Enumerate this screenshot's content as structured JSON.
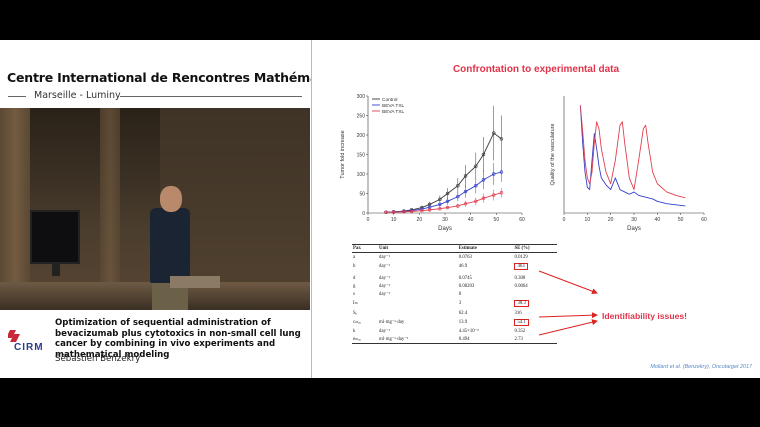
{
  "header": {
    "institute": "Centre International de Rencontres Mathématiques",
    "location": "Marseille - Luminy"
  },
  "caption": {
    "logo_text": "CIRM",
    "talk_title": "Optimization of sequential administration of bevacizumab plus cytotoxics in non-small cell lung cancer by combining in vivo experiments and mathematical modeling",
    "speaker": "Sébastien Benzekry"
  },
  "slide": {
    "title": "Confrontation to experimental data",
    "identifiability_label": "Identifiability issues!",
    "reference": "Mollard et al. (Benzekry), Oncotarget 2017"
  },
  "colors": {
    "accent_red": "#e0344a",
    "control": "#3a3a3a",
    "beva_txl": "#3340c8",
    "beva_txl2": "#e04050"
  },
  "chart_data": [
    {
      "type": "line",
      "xlabel": "Days",
      "ylabel": "Tumor fold increase",
      "xlim": [
        0,
        60
      ],
      "ylim": [
        0,
        300
      ],
      "xticks": [
        0,
        10,
        20,
        30,
        40,
        50,
        60
      ],
      "yticks": [
        0,
        50,
        100,
        150,
        200,
        250,
        300
      ],
      "legend_position": "top-left",
      "series": [
        {
          "name": "Control",
          "color": "#3a3a3a",
          "x": [
            7,
            10,
            14,
            17,
            21,
            24,
            28,
            31,
            35,
            38,
            42,
            45,
            49,
            52
          ],
          "y": [
            2,
            3,
            5,
            8,
            14,
            22,
            35,
            50,
            70,
            95,
            120,
            150,
            205,
            190
          ],
          "err": [
            1,
            1,
            2,
            3,
            5,
            7,
            10,
            14,
            20,
            28,
            35,
            45,
            70,
            60
          ]
        },
        {
          "name": "BEVA TXL",
          "color": "#3340c8",
          "x": [
            7,
            10,
            14,
            17,
            21,
            24,
            28,
            31,
            35,
            38,
            42,
            45,
            49,
            52
          ],
          "y": [
            2,
            3,
            4,
            6,
            10,
            15,
            22,
            30,
            42,
            55,
            70,
            85,
            100,
            105
          ],
          "err": [
            1,
            1,
            2,
            2,
            4,
            5,
            7,
            9,
            12,
            16,
            20,
            24,
            28,
            25
          ]
        },
        {
          "name": "BEVA TXL",
          "color": "#e04050",
          "x": [
            7,
            10,
            14,
            17,
            21,
            24,
            28,
            31,
            35,
            38,
            42,
            45,
            49,
            52
          ],
          "y": [
            2,
            2,
            3,
            4,
            6,
            8,
            11,
            14,
            18,
            24,
            30,
            38,
            46,
            52
          ],
          "err": [
            1,
            1,
            1,
            2,
            2,
            3,
            4,
            5,
            6,
            8,
            10,
            12,
            14,
            12
          ]
        }
      ]
    },
    {
      "type": "line",
      "xlabel": "Days",
      "ylabel": "Quality of the vasculature",
      "xlim": [
        0,
        60
      ],
      "xticks": [
        0,
        10,
        20,
        30,
        40,
        50,
        60
      ],
      "series": [
        {
          "color": "#3340c8",
          "x": [
            7,
            8,
            9,
            10,
            11,
            12,
            13,
            14,
            15,
            16,
            18,
            20,
            22,
            24,
            26,
            28,
            30,
            32,
            34,
            36,
            38,
            40,
            44,
            48,
            52
          ],
          "y": [
            0.92,
            0.6,
            0.35,
            0.22,
            0.2,
            0.45,
            0.68,
            0.55,
            0.4,
            0.3,
            0.24,
            0.2,
            0.3,
            0.2,
            0.18,
            0.16,
            0.18,
            0.15,
            0.14,
            0.13,
            0.12,
            0.1,
            0.08,
            0.07,
            0.06
          ]
        },
        {
          "color": "#e04050",
          "x": [
            7,
            8,
            9,
            10,
            11,
            12,
            13,
            14,
            15,
            16,
            18,
            20,
            22,
            24,
            25,
            26,
            28,
            30,
            32,
            34,
            35,
            36,
            38,
            40,
            44,
            48,
            52
          ],
          "y": [
            0.92,
            0.7,
            0.45,
            0.3,
            0.25,
            0.35,
            0.6,
            0.78,
            0.72,
            0.55,
            0.35,
            0.25,
            0.45,
            0.75,
            0.78,
            0.6,
            0.3,
            0.2,
            0.45,
            0.72,
            0.75,
            0.6,
            0.35,
            0.25,
            0.18,
            0.15,
            0.13
          ]
        }
      ]
    }
  ],
  "param_table": {
    "headers": [
      "Par.",
      "Unit",
      "Estimate",
      "SE (%)"
    ],
    "rows": [
      [
        "a",
        "day⁻¹",
        "0.0763",
        "0.0129"
      ],
      [
        "b",
        "day⁻¹",
        "46.9",
        "463"
      ],
      [
        "",
        "",
        "",
        ""
      ],
      [
        "d",
        "day⁻¹",
        "0.0745",
        "0.308"
      ],
      [
        "g",
        "day⁻¹",
        "0.00203",
        "0.0064"
      ],
      [
        "s",
        "day⁻¹",
        "0",
        ""
      ],
      [
        "Iₘ",
        "",
        "3",
        "38.3"
      ],
      [
        "Sₑ",
        "",
        "62.4",
        "316"
      ],
      [
        "cₘₐₓ",
        "ml·mg⁻¹·day",
        "13.9",
        "54.1"
      ],
      [
        "k",
        "day⁻¹",
        "4.45×10⁻³",
        "0.352"
      ],
      [
        "eₘₐₓ",
        "ml·mg⁻¹·day⁻¹",
        "0.494",
        "2.73"
      ]
    ],
    "boxed_rows": [
      1,
      6,
      8
    ]
  }
}
